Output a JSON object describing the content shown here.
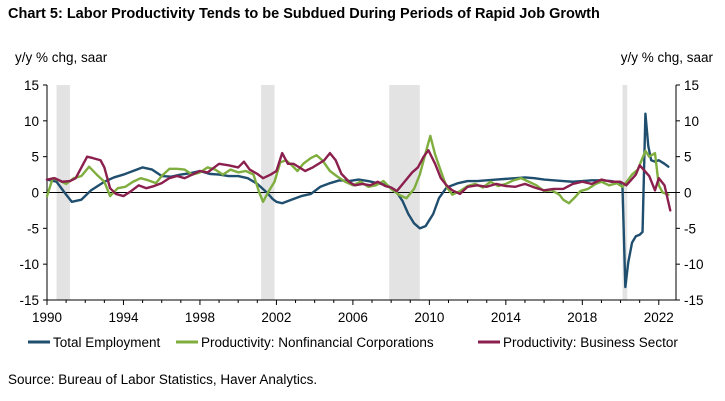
{
  "title": "Chart 5: Labor Productivity Tends to be Subdued During Periods of Rapid Job Growth",
  "left_axis_label": "y/y % chg, saar",
  "right_axis_label": "y/y % chg, saar",
  "source": "Source: Bureau of Labor Statistics, Haver Analytics.",
  "chart_data": {
    "type": "line",
    "title": "Chart 5: Labor Productivity Tends to be Subdued During Periods of Rapid Job Growth",
    "ylabel": "y/y % chg, saar",
    "xlim": [
      1990,
      2022.9
    ],
    "ylim": [
      -15,
      15
    ],
    "yticks": [
      -15,
      -10,
      -5,
      0,
      5,
      10,
      15
    ],
    "xticks": [
      1990,
      1994,
      1998,
      2002,
      2006,
      2010,
      2014,
      2018,
      2022
    ],
    "grid": false,
    "legend_position": "bottom",
    "recessions": [
      [
        1990.5,
        1991.2
      ],
      [
        2001.2,
        2001.9
      ],
      [
        2007.9,
        2009.5
      ],
      [
        2020.1,
        2020.35
      ]
    ],
    "series": [
      {
        "name": "Total Employment",
        "color": "#1f4e6e",
        "points": [
          [
            1990.0,
            1.8
          ],
          [
            1990.5,
            1.5
          ],
          [
            1991.0,
            -0.3
          ],
          [
            1991.3,
            -1.3
          ],
          [
            1991.8,
            -1.0
          ],
          [
            1992.3,
            0.3
          ],
          [
            1993.0,
            1.5
          ],
          [
            1993.5,
            2.1
          ],
          [
            1994.0,
            2.5
          ],
          [
            1994.5,
            3.0
          ],
          [
            1995.0,
            3.5
          ],
          [
            1995.5,
            3.2
          ],
          [
            1996.0,
            2.3
          ],
          [
            1996.5,
            2.2
          ],
          [
            1997.0,
            2.5
          ],
          [
            1997.5,
            2.7
          ],
          [
            1998.0,
            3.0
          ],
          [
            1998.5,
            2.6
          ],
          [
            1999.0,
            2.5
          ],
          [
            1999.5,
            2.3
          ],
          [
            2000.0,
            2.3
          ],
          [
            2000.5,
            2.0
          ],
          [
            2001.0,
            1.2
          ],
          [
            2001.5,
            0.0
          ],
          [
            2001.8,
            -0.9
          ],
          [
            2002.0,
            -1.3
          ],
          [
            2002.3,
            -1.5
          ],
          [
            2002.8,
            -1.0
          ],
          [
            2003.3,
            -0.5
          ],
          [
            2003.8,
            -0.2
          ],
          [
            2004.3,
            0.8
          ],
          [
            2004.8,
            1.3
          ],
          [
            2005.3,
            1.7
          ],
          [
            2005.8,
            1.6
          ],
          [
            2006.3,
            1.8
          ],
          [
            2006.8,
            1.6
          ],
          [
            2007.3,
            1.3
          ],
          [
            2007.8,
            1.0
          ],
          [
            2008.3,
            0.0
          ],
          [
            2008.6,
            -1.2
          ],
          [
            2008.9,
            -3.0
          ],
          [
            2009.2,
            -4.3
          ],
          [
            2009.5,
            -5.0
          ],
          [
            2009.8,
            -4.7
          ],
          [
            2010.2,
            -3.0
          ],
          [
            2010.5,
            -0.8
          ],
          [
            2010.9,
            0.7
          ],
          [
            2011.5,
            1.3
          ],
          [
            2012.0,
            1.6
          ],
          [
            2012.5,
            1.6
          ],
          [
            2013.0,
            1.7
          ],
          [
            2013.5,
            1.8
          ],
          [
            2014.0,
            1.9
          ],
          [
            2014.5,
            2.0
          ],
          [
            2015.0,
            2.1
          ],
          [
            2015.5,
            2.0
          ],
          [
            2016.0,
            1.8
          ],
          [
            2016.5,
            1.7
          ],
          [
            2017.0,
            1.6
          ],
          [
            2017.5,
            1.5
          ],
          [
            2018.0,
            1.6
          ],
          [
            2018.5,
            1.7
          ],
          [
            2019.0,
            1.7
          ],
          [
            2019.5,
            1.6
          ],
          [
            2019.9,
            1.4
          ],
          [
            2020.1,
            0.8
          ],
          [
            2020.25,
            -13.2
          ],
          [
            2020.4,
            -9.8
          ],
          [
            2020.6,
            -7.0
          ],
          [
            2020.8,
            -6.1
          ],
          [
            2021.0,
            -5.9
          ],
          [
            2021.15,
            -5.5
          ],
          [
            2021.3,
            11.0
          ],
          [
            2021.45,
            6.5
          ],
          [
            2021.6,
            4.5
          ],
          [
            2021.8,
            4.3
          ],
          [
            2022.0,
            4.5
          ],
          [
            2022.3,
            4.0
          ],
          [
            2022.5,
            3.6
          ]
        ]
      },
      {
        "name": "Productivity: Nonfinancial Corporations",
        "color": "#7fae3f",
        "points": [
          [
            1990.0,
            -0.5
          ],
          [
            1990.3,
            2.0
          ],
          [
            1990.7,
            1.6
          ],
          [
            1991.0,
            1.2
          ],
          [
            1991.4,
            2.0
          ],
          [
            1991.8,
            2.3
          ],
          [
            1992.2,
            3.6
          ],
          [
            1992.6,
            2.5
          ],
          [
            1993.0,
            1.5
          ],
          [
            1993.3,
            -0.5
          ],
          [
            1993.7,
            0.6
          ],
          [
            1994.1,
            0.8
          ],
          [
            1994.5,
            1.5
          ],
          [
            1994.9,
            2.0
          ],
          [
            1995.3,
            1.7
          ],
          [
            1995.7,
            1.3
          ],
          [
            1996.0,
            2.3
          ],
          [
            1996.4,
            3.3
          ],
          [
            1996.8,
            3.3
          ],
          [
            1997.2,
            3.2
          ],
          [
            1997.6,
            2.5
          ],
          [
            1998.0,
            2.8
          ],
          [
            1998.4,
            3.5
          ],
          [
            1998.8,
            3.2
          ],
          [
            1999.2,
            2.5
          ],
          [
            1999.6,
            3.2
          ],
          [
            2000.0,
            2.8
          ],
          [
            2000.4,
            3.0
          ],
          [
            2000.8,
            2.5
          ],
          [
            2001.1,
            0.0
          ],
          [
            2001.3,
            -1.3
          ],
          [
            2001.6,
            0.2
          ],
          [
            2001.9,
            1.5
          ],
          [
            2002.2,
            4.2
          ],
          [
            2002.5,
            4.5
          ],
          [
            2002.8,
            3.8
          ],
          [
            2003.1,
            3.0
          ],
          [
            2003.4,
            4.0
          ],
          [
            2003.8,
            4.8
          ],
          [
            2004.1,
            5.2
          ],
          [
            2004.4,
            4.5
          ],
          [
            2004.8,
            3.0
          ],
          [
            2005.2,
            2.2
          ],
          [
            2005.6,
            1.5
          ],
          [
            2006.0,
            1.0
          ],
          [
            2006.4,
            1.5
          ],
          [
            2006.8,
            0.8
          ],
          [
            2007.2,
            1.0
          ],
          [
            2007.6,
            1.6
          ],
          [
            2008.0,
            0.5
          ],
          [
            2008.4,
            -0.3
          ],
          [
            2008.8,
            -0.8
          ],
          [
            2009.2,
            0.5
          ],
          [
            2009.5,
            2.5
          ],
          [
            2009.8,
            5.5
          ],
          [
            2010.05,
            7.9
          ],
          [
            2010.3,
            5.3
          ],
          [
            2010.6,
            3.0
          ],
          [
            2010.9,
            0.8
          ],
          [
            2011.2,
            -0.3
          ],
          [
            2011.6,
            0.2
          ],
          [
            2012.0,
            0.9
          ],
          [
            2012.4,
            1.2
          ],
          [
            2012.8,
            0.7
          ],
          [
            2013.2,
            1.5
          ],
          [
            2013.6,
            0.9
          ],
          [
            2014.0,
            1.2
          ],
          [
            2014.4,
            1.7
          ],
          [
            2014.8,
            2.0
          ],
          [
            2015.2,
            1.5
          ],
          [
            2015.6,
            1.0
          ],
          [
            2016.0,
            0.2
          ],
          [
            2016.4,
            0.3
          ],
          [
            2016.8,
            -0.3
          ],
          [
            2017.0,
            -1.0
          ],
          [
            2017.3,
            -1.5
          ],
          [
            2017.6,
            -0.7
          ],
          [
            2017.9,
            0.2
          ],
          [
            2018.3,
            0.5
          ],
          [
            2018.7,
            1.2
          ],
          [
            2019.0,
            1.5
          ],
          [
            2019.4,
            1.0
          ],
          [
            2019.8,
            1.3
          ],
          [
            2020.1,
            0.8
          ],
          [
            2020.35,
            1.6
          ],
          [
            2020.6,
            2.5
          ],
          [
            2020.9,
            3.2
          ],
          [
            2021.1,
            4.5
          ],
          [
            2021.3,
            5.8
          ],
          [
            2021.5,
            5.0
          ],
          [
            2021.8,
            5.5
          ],
          [
            2022.0,
            1.0
          ],
          [
            2022.2,
            0.0
          ],
          [
            2022.5,
            -0.3
          ]
        ]
      },
      {
        "name": "Productivity: Business Sector",
        "color": "#8b1f4e",
        "points": [
          [
            1990.0,
            1.8
          ],
          [
            1990.4,
            2.0
          ],
          [
            1990.8,
            1.5
          ],
          [
            1991.2,
            1.6
          ],
          [
            1991.5,
            2.0
          ],
          [
            1991.8,
            3.5
          ],
          [
            1992.1,
            5.0
          ],
          [
            1992.4,
            4.8
          ],
          [
            1992.8,
            4.5
          ],
          [
            1993.0,
            3.5
          ],
          [
            1993.3,
            0.6
          ],
          [
            1993.6,
            -0.2
          ],
          [
            1994.0,
            -0.5
          ],
          [
            1994.4,
            0.2
          ],
          [
            1994.8,
            1.0
          ],
          [
            1995.2,
            0.6
          ],
          [
            1995.6,
            0.9
          ],
          [
            1996.0,
            1.3
          ],
          [
            1996.4,
            2.0
          ],
          [
            1996.8,
            2.3
          ],
          [
            1997.2,
            2.0
          ],
          [
            1997.6,
            2.5
          ],
          [
            1998.0,
            3.0
          ],
          [
            1998.4,
            2.8
          ],
          [
            1999.0,
            4.0
          ],
          [
            1999.5,
            3.8
          ],
          [
            2000.0,
            3.5
          ],
          [
            2000.3,
            4.3
          ],
          [
            2000.6,
            3.2
          ],
          [
            2001.0,
            2.6
          ],
          [
            2001.3,
            2.0
          ],
          [
            2001.7,
            2.5
          ],
          [
            2002.0,
            3.0
          ],
          [
            2002.3,
            5.5
          ],
          [
            2002.6,
            4.0
          ],
          [
            2002.9,
            4.0
          ],
          [
            2003.2,
            3.5
          ],
          [
            2003.5,
            3.0
          ],
          [
            2003.9,
            3.5
          ],
          [
            2004.2,
            4.0
          ],
          [
            2004.5,
            4.5
          ],
          [
            2004.8,
            5.5
          ],
          [
            2005.1,
            4.5
          ],
          [
            2005.4,
            2.6
          ],
          [
            2005.8,
            1.5
          ],
          [
            2006.1,
            1.0
          ],
          [
            2006.5,
            1.2
          ],
          [
            2006.9,
            1.0
          ],
          [
            2007.3,
            1.5
          ],
          [
            2007.7,
            0.9
          ],
          [
            2008.0,
            0.7
          ],
          [
            2008.3,
            0.2
          ],
          [
            2008.7,
            1.5
          ],
          [
            2009.1,
            2.8
          ],
          [
            2009.4,
            3.5
          ],
          [
            2009.7,
            5.0
          ],
          [
            2009.95,
            5.9
          ],
          [
            2010.3,
            4.0
          ],
          [
            2010.6,
            2.0
          ],
          [
            2010.9,
            1.0
          ],
          [
            2011.2,
            0.3
          ],
          [
            2011.6,
            -0.2
          ],
          [
            2012.0,
            0.8
          ],
          [
            2012.5,
            1.0
          ],
          [
            2013.0,
            0.8
          ],
          [
            2013.5,
            1.2
          ],
          [
            2014.0,
            0.9
          ],
          [
            2014.5,
            0.8
          ],
          [
            2015.0,
            1.2
          ],
          [
            2015.5,
            0.7
          ],
          [
            2016.0,
            0.3
          ],
          [
            2016.5,
            0.5
          ],
          [
            2017.0,
            0.5
          ],
          [
            2017.5,
            1.2
          ],
          [
            2018.0,
            1.5
          ],
          [
            2018.5,
            1.2
          ],
          [
            2019.0,
            1.8
          ],
          [
            2019.5,
            1.5
          ],
          [
            2020.0,
            1.5
          ],
          [
            2020.3,
            1.0
          ],
          [
            2020.5,
            1.6
          ],
          [
            2020.8,
            2.5
          ],
          [
            2021.0,
            3.8
          ],
          [
            2021.2,
            3.2
          ],
          [
            2021.5,
            2.3
          ],
          [
            2021.8,
            0.3
          ],
          [
            2022.0,
            2.0
          ],
          [
            2022.3,
            1.0
          ],
          [
            2022.6,
            -2.5
          ]
        ]
      }
    ]
  }
}
